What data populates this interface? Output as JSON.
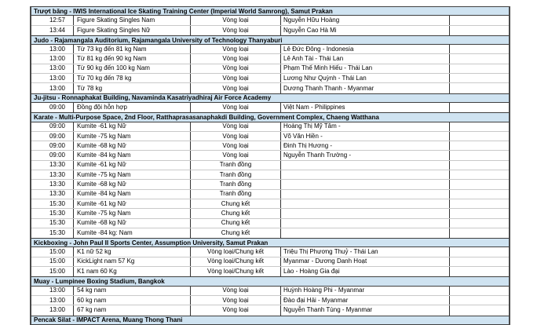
{
  "page": {
    "background": "#ffffff"
  },
  "colors": {
    "section_header_bg": "#cfe3f1",
    "border_dark": "#3f3f3f",
    "border_outer": "#4a4a4a",
    "row_divider": "#c9c9c9",
    "text": "#000000"
  },
  "table": {
    "column_keys": [
      "time",
      "event",
      "round",
      "athlete",
      "extra"
    ],
    "sections": [
      {
        "title": "Trượt băng - IWIS International Ice Skating Training Center (Imperial World Samrong), Samut Prakan",
        "rows": [
          {
            "time": "12:57",
            "event": "Figure Skating Singles Nam",
            "round": "Vòng loại",
            "athlete": "Nguyễn Hữu Hoàng",
            "extra": ""
          },
          {
            "time": "13:44",
            "event": "Figure Skating Singles Nữ",
            "round": "Vòng loại",
            "athlete": "Nguyễn Cao Hà Mi",
            "extra": ""
          }
        ]
      },
      {
        "title": "Judo - Rajamangala Auditorium, Rajamangala University of Technology Thanyaburi",
        "rows": [
          {
            "time": "13:00",
            "event": "Từ 73 kg đến 81 kg Nam",
            "round": "Vòng loại",
            "athlete": "Lê Đức Đông - Indonesia",
            "extra": ""
          },
          {
            "time": "13:00",
            "event": "Từ 81 kg đến 90 kg Nam",
            "round": "Vòng loại",
            "athlete": "Lê Anh Tài - Thái Lan",
            "extra": ""
          },
          {
            "time": "13:00",
            "event": "Từ 90 kg đến 100 kg Nam",
            "round": "Vòng loại",
            "athlete": "Phạm Thế Minh Hiếu - Thái Lan",
            "extra": ""
          },
          {
            "time": "13:00",
            "event": "Từ 70 kg đến 78 kg",
            "round": "Vòng loại",
            "athlete": "Lương Như Quỳnh - Thái Lan",
            "extra": ""
          },
          {
            "time": "13:00",
            "event": "Từ 78 kg",
            "round": "Vòng loại",
            "athlete": "Dương Thanh Thanh - Myanmar",
            "extra": ""
          }
        ]
      },
      {
        "title": "Ju-jitsu - Ronnaphakat Building, Navaminda Kasatriyadhiraj Air Force Academy",
        "rows": [
          {
            "time": "09:00",
            "event": "Đồng đội hỗn hợp",
            "round": "Vòng loại",
            "athlete": "Việt Nam - Philippines",
            "extra": ""
          }
        ]
      },
      {
        "title": "Karate - Multi-Purpose Space, 2nd Floor, Ratthaprasasanaphakdi Building, Government Complex, Chaeng Watthana",
        "rows": [
          {
            "time": "09:00",
            "event": "Kumite -61 kg Nữ",
            "round": "Vòng loại",
            "athlete": "Hoàng Thị Mỹ Tâm -",
            "extra": ""
          },
          {
            "time": "09:00",
            "event": "Kumite -75 kg Nam",
            "round": "Vòng loại",
            "athlete": "Võ Văn Hiền -",
            "extra": ""
          },
          {
            "time": "09:00",
            "event": "Kumite -68 kg Nữ",
            "round": "Vòng loại",
            "athlete": "Đinh Thị Hương -",
            "extra": ""
          },
          {
            "time": "09:00",
            "event": "Kumite -84 kg Nam",
            "round": "Vòng loại",
            "athlete": "Nguyễn Thanh Trường -",
            "extra": ""
          },
          {
            "time": "13:30",
            "event": "Kumite -61 kg Nữ",
            "round": "Tranh đồng",
            "athlete": "",
            "extra": ""
          },
          {
            "time": "13:30",
            "event": "Kumite -75 kg Nam",
            "round": "Tranh đồng",
            "athlete": "",
            "extra": ""
          },
          {
            "time": "13:30",
            "event": "Kumite -68 kg Nữ",
            "round": "Tranh đồng",
            "athlete": "",
            "extra": ""
          },
          {
            "time": "13:30",
            "event": "Kumite -84 kg Nam",
            "round": "Tranh đồng",
            "athlete": "",
            "extra": ""
          },
          {
            "time": "15:30",
            "event": "Kumite -61 kg Nữ",
            "round": "Chung kết",
            "athlete": "",
            "extra": ""
          },
          {
            "time": "15:30",
            "event": "Kumite -75 kg Nam",
            "round": "Chung kết",
            "athlete": "",
            "extra": ""
          },
          {
            "time": "15:30",
            "event": "Kumite -68 kg Nữ",
            "round": "Chung kết",
            "athlete": "",
            "extra": ""
          },
          {
            "time": "15:30",
            "event": "Kumite -84 kg: Nam",
            "round": "Chung kết",
            "athlete": "",
            "extra": ""
          }
        ]
      },
      {
        "title": "Kickboxing - John Paul II Sports Center, Assumption University, Samut Prakan",
        "rows": [
          {
            "time": "15:00",
            "event": "K1 nữ 52 kg",
            "round": "Vòng loại/Chung kết",
            "athlete": "Triệu Thị Phương Thuỷ - Thái Lan",
            "extra": ""
          },
          {
            "time": "15:00",
            "event": "KickLight nam 57 Kg",
            "round": "Vòng loại/Chung kết",
            "athlete": "Myanmar - Dương Danh Hoạt",
            "extra": ""
          },
          {
            "time": "15:00",
            "event": "K1 nam 60 Kg",
            "round": "Vòng loại/Chung kết",
            "athlete": "Lào - Hoàng Gia đại",
            "extra": ""
          }
        ]
      },
      {
        "title": "Muay - Lumpinee Boxing Stadium, Bangkok",
        "rows": [
          {
            "time": "13:00",
            "event": "54 kg nam",
            "round": "Vòng loại",
            "athlete": "Huỳnh Hoàng Phi - Myanmar",
            "extra": ""
          },
          {
            "time": "13:00",
            "event": "60 kg nam",
            "round": "Vòng loại",
            "athlete": "Đào đại Hải - Myanmar",
            "extra": ""
          },
          {
            "time": "13:00",
            "event": "67 kg nam",
            "round": "Vòng loại",
            "athlete": "Nguyễn Thanh Tùng - Myanmar",
            "extra": ""
          }
        ]
      },
      {
        "title": "Pencak Silat - IMPACT Arena, Muang Thong Thani",
        "rows": []
      }
    ]
  }
}
